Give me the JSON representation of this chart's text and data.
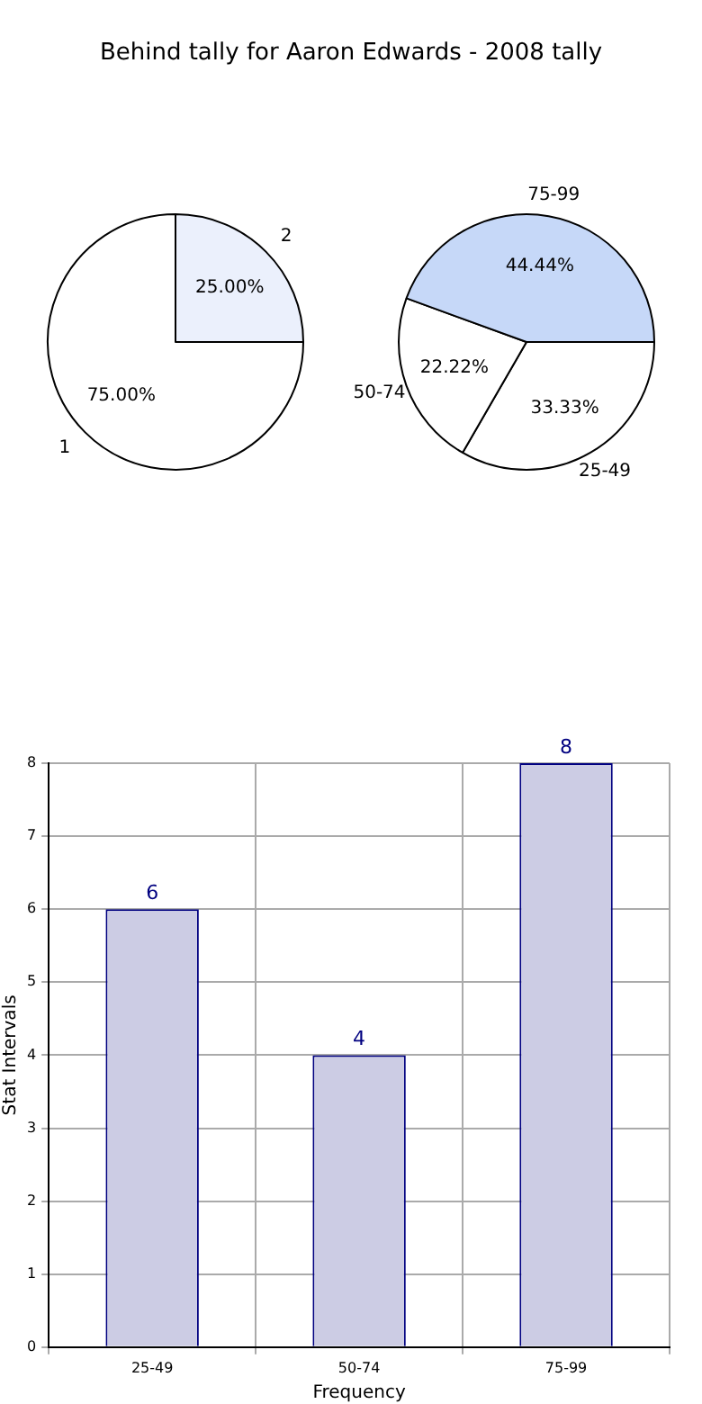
{
  "chart_data": [
    {
      "type": "pie",
      "title": "Behind tally for Aaron Edwards - 2008 tally",
      "categories": [
        "1",
        "2"
      ],
      "values": [
        75,
        25
      ],
      "colors": [
        "#ffffff",
        "#ebf0fc"
      ],
      "value_labels": [
        "75.00%",
        "25.00%"
      ],
      "legend": false
    },
    {
      "type": "pie",
      "categories": [
        "25-49",
        "50-74",
        "75-99"
      ],
      "values": [
        33.33,
        22.22,
        44.44
      ],
      "colors": [
        "#ffffff",
        "#ffffff",
        "#c6d8f8"
      ],
      "value_labels": [
        "33.33%",
        "22.22%",
        "44.44%"
      ],
      "legend": false
    },
    {
      "type": "bar",
      "categories": [
        "25-49",
        "50-74",
        "75-99"
      ],
      "values": [
        6,
        4,
        8
      ],
      "color": "#cccce4",
      "ylim": [
        0,
        8
      ],
      "yticks": [
        0,
        1,
        2,
        3,
        4,
        5,
        6,
        7,
        8
      ],
      "xlabel": "Frequency",
      "ylabel": "Stat Intervals",
      "grid": true,
      "data_labels": true,
      "legend": false
    }
  ]
}
